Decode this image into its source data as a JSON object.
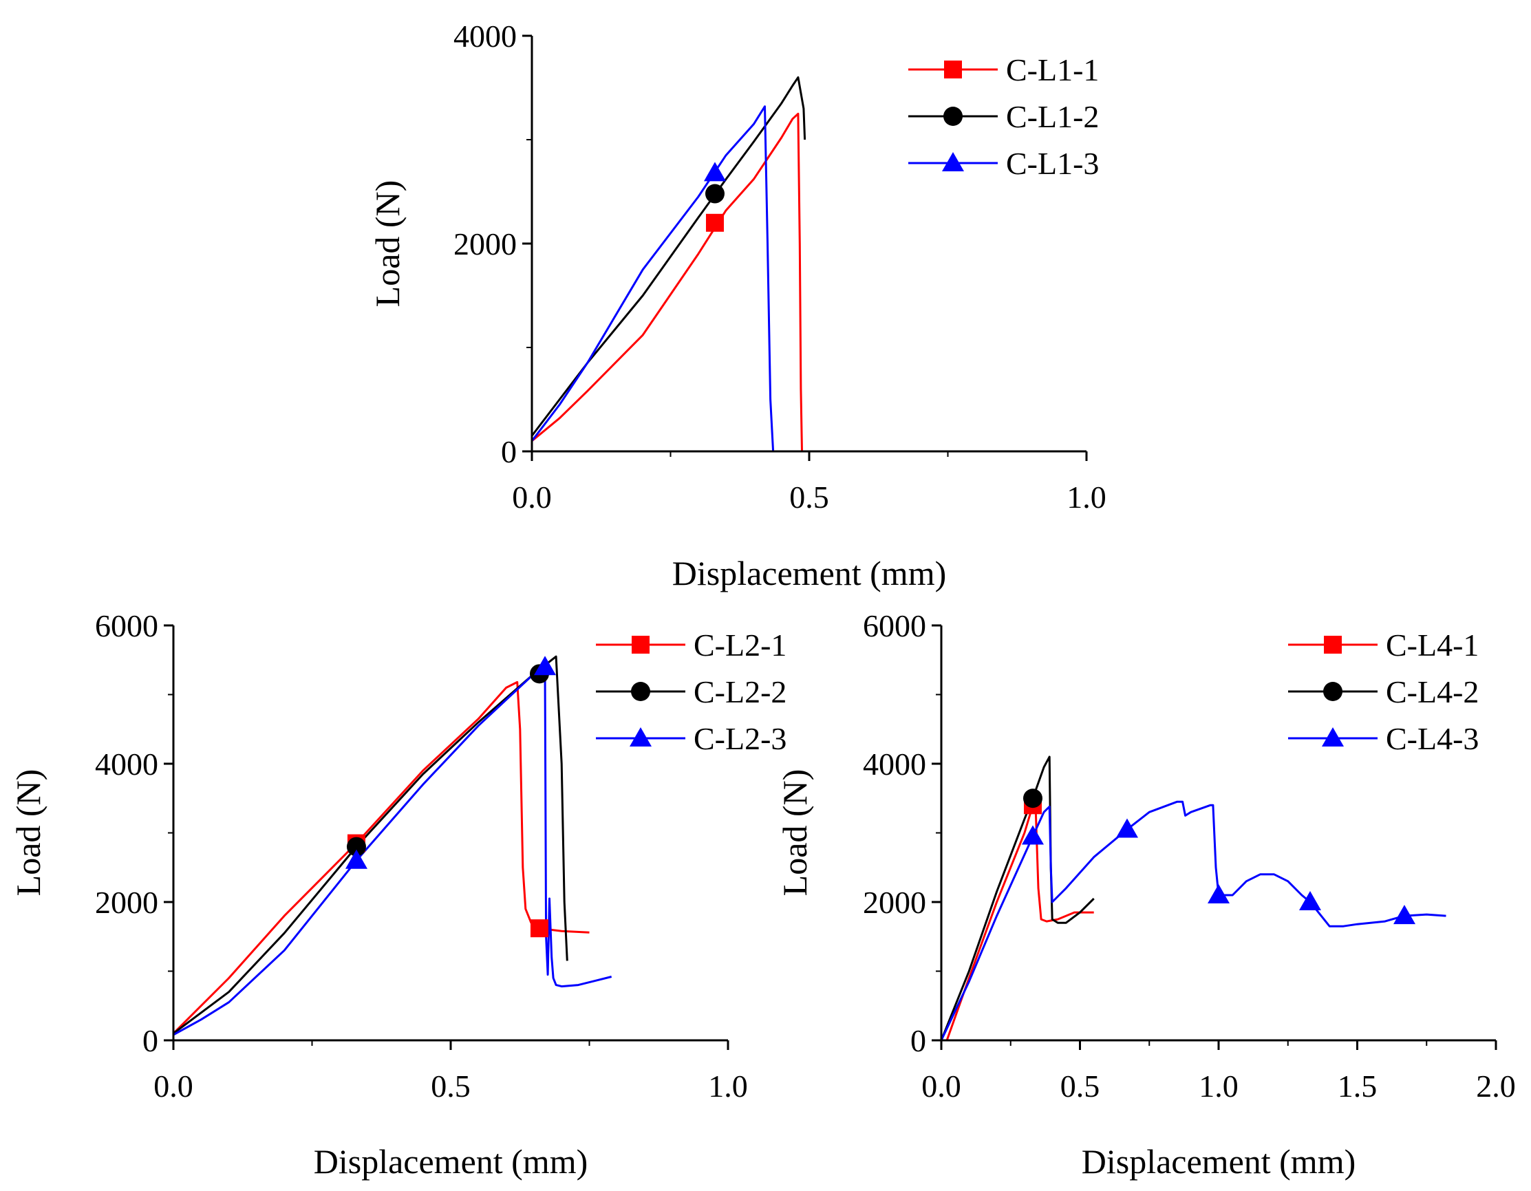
{
  "chart_data": [
    {
      "type": "line",
      "id": "c-l1",
      "xlabel": "Displacement (mm)",
      "ylabel": "Load (N)",
      "xlim": [
        0,
        1.0
      ],
      "ylim": [
        0,
        4000
      ],
      "xticks": [
        0,
        0.5,
        1.0
      ],
      "xtick_labels": [
        "0.0",
        "0.5",
        "1.0"
      ],
      "xminor": [
        0.25,
        0.75
      ],
      "yticks": [
        0,
        2000,
        4000
      ],
      "ytick_labels": [
        "0",
        "2000",
        "4000"
      ],
      "yminor": [
        1000,
        3000
      ],
      "legend_position": "top-right",
      "series": [
        {
          "name": "C-L1-1",
          "color": "#ff0000",
          "marker": "square",
          "x": [
            0.0,
            0.05,
            0.1,
            0.2,
            0.3,
            0.35,
            0.4,
            0.45,
            0.47,
            0.48,
            0.483,
            0.485,
            0.487
          ],
          "y": [
            100,
            320,
            580,
            1120,
            1900,
            2320,
            2620,
            3020,
            3200,
            3250,
            2000,
            600,
            0
          ],
          "marker_x": [
            0.33
          ],
          "marker_y": [
            2200
          ]
        },
        {
          "name": "C-L1-2",
          "color": "#000000",
          "marker": "circle",
          "x": [
            0.0,
            0.05,
            0.1,
            0.2,
            0.3,
            0.35,
            0.4,
            0.45,
            0.47,
            0.48,
            0.49,
            0.492
          ],
          "y": [
            150,
            500,
            850,
            1500,
            2250,
            2620,
            2980,
            3350,
            3520,
            3600,
            3300,
            3000
          ],
          "marker_x": [
            0.33
          ],
          "marker_y": [
            2480
          ]
        },
        {
          "name": "C-L1-3",
          "color": "#0000ff",
          "marker": "triangle",
          "x": [
            0.0,
            0.05,
            0.1,
            0.2,
            0.3,
            0.35,
            0.4,
            0.42,
            0.425,
            0.43,
            0.435
          ],
          "y": [
            100,
            450,
            850,
            1750,
            2450,
            2850,
            3150,
            3320,
            2000,
            500,
            0
          ],
          "marker_x": [
            0.33
          ],
          "marker_y": [
            2680
          ]
        }
      ]
    },
    {
      "type": "line",
      "id": "c-l2",
      "xlabel": "Displacement (mm)",
      "ylabel": "Load (N)",
      "xlim": [
        0,
        1.0
      ],
      "ylim": [
        0,
        6000
      ],
      "xticks": [
        0,
        0.5,
        1.0
      ],
      "xtick_labels": [
        "0.0",
        "0.5",
        "1.0"
      ],
      "xminor": [
        0.25,
        0.75
      ],
      "yticks": [
        0,
        2000,
        4000,
        6000
      ],
      "ytick_labels": [
        "0",
        "2000",
        "4000",
        "6000"
      ],
      "yminor": [
        1000,
        3000,
        5000
      ],
      "legend_position": "top-right",
      "series": [
        {
          "name": "C-L2-1",
          "color": "#ff0000",
          "marker": "square",
          "x": [
            0.0,
            0.1,
            0.2,
            0.33,
            0.45,
            0.55,
            0.6,
            0.62,
            0.625,
            0.63,
            0.635,
            0.645,
            0.66,
            0.7,
            0.75
          ],
          "y": [
            100,
            900,
            1800,
            2850,
            3900,
            4650,
            5100,
            5180,
            4500,
            2500,
            1900,
            1700,
            1620,
            1580,
            1560
          ],
          "marker_x": [
            0.33,
            0.66
          ],
          "marker_y": [
            2850,
            1620
          ]
        },
        {
          "name": "C-L2-2",
          "color": "#000000",
          "marker": "circle",
          "x": [
            0.0,
            0.1,
            0.2,
            0.33,
            0.45,
            0.55,
            0.65,
            0.69,
            0.7,
            0.705,
            0.71
          ],
          "y": [
            100,
            700,
            1550,
            2800,
            3850,
            4600,
            5300,
            5550,
            4000,
            2000,
            1150
          ],
          "marker_x": [
            0.33,
            0.66
          ],
          "marker_y": [
            2800,
            5300
          ]
        },
        {
          "name": "C-L2-3",
          "color": "#0000ff",
          "marker": "triangle",
          "x": [
            0.0,
            0.05,
            0.1,
            0.2,
            0.33,
            0.45,
            0.55,
            0.65,
            0.67,
            0.672,
            0.675,
            0.678,
            0.682,
            0.685,
            0.69,
            0.7,
            0.73,
            0.76,
            0.79
          ],
          "y": [
            80,
            300,
            550,
            1300,
            2600,
            3700,
            4550,
            5300,
            5400,
            1500,
            950,
            2050,
            1200,
            900,
            800,
            780,
            800,
            860,
            920
          ],
          "marker_x": [
            0.33,
            0.67
          ],
          "marker_y": [
            2600,
            5400
          ]
        }
      ]
    },
    {
      "type": "line",
      "id": "c-l4",
      "xlabel": "Displacement (mm)",
      "ylabel": "Load (N)",
      "xlim": [
        0,
        2.0
      ],
      "ylim": [
        0,
        6000
      ],
      "xticks": [
        0,
        0.5,
        1.0,
        1.5,
        2.0
      ],
      "xtick_labels": [
        "0.0",
        "0.5",
        "1.0",
        "1.5",
        "2.0"
      ],
      "xminor": [
        0.25,
        0.75,
        1.25,
        1.75
      ],
      "yticks": [
        0,
        2000,
        4000,
        6000
      ],
      "ytick_labels": [
        "0",
        "2000",
        "4000",
        "6000"
      ],
      "yminor": [
        1000,
        3000,
        5000
      ],
      "legend_position": "top-right",
      "series": [
        {
          "name": "C-L4-1",
          "color": "#ff0000",
          "marker": "square",
          "x": [
            0.02,
            0.1,
            0.2,
            0.3,
            0.33,
            0.34,
            0.35,
            0.36,
            0.38,
            0.42,
            0.48,
            0.55
          ],
          "y": [
            0,
            900,
            2000,
            3000,
            3400,
            3400,
            2200,
            1750,
            1720,
            1750,
            1850,
            1850
          ],
          "marker_x": [
            0.33
          ],
          "marker_y": [
            3400
          ]
        },
        {
          "name": "C-L4-2",
          "color": "#000000",
          "marker": "circle",
          "x": [
            0.0,
            0.1,
            0.2,
            0.3,
            0.33,
            0.37,
            0.39,
            0.395,
            0.4,
            0.42,
            0.45,
            0.5,
            0.55
          ],
          "y": [
            0,
            1000,
            2150,
            3200,
            3500,
            3950,
            4100,
            2500,
            1750,
            1700,
            1700,
            1850,
            2050
          ],
          "marker_x": [
            0.33
          ],
          "marker_y": [
            3500
          ]
        },
        {
          "name": "C-L4-3",
          "color": "#0000ff",
          "marker": "triangle",
          "x": [
            0.0,
            0.1,
            0.2,
            0.33,
            0.37,
            0.39,
            0.395,
            0.4,
            0.45,
            0.55,
            0.67,
            0.75,
            0.85,
            0.87,
            0.88,
            0.9,
            0.97,
            0.98,
            0.99,
            1.0,
            1.05,
            1.1,
            1.15,
            1.2,
            1.25,
            1.3,
            1.33,
            1.36,
            1.4,
            1.45,
            1.5,
            1.6,
            1.67,
            1.75,
            1.82
          ],
          "y": [
            0,
            850,
            1800,
            2950,
            3300,
            3380,
            2500,
            2000,
            2200,
            2650,
            3050,
            3300,
            3450,
            3450,
            3250,
            3300,
            3400,
            3400,
            2500,
            2100,
            2100,
            2300,
            2400,
            2400,
            2300,
            2100,
            2000,
            1850,
            1650,
            1650,
            1680,
            1720,
            1800,
            1820,
            1800
          ],
          "marker_x": [
            0.33,
            0.67,
            1.0,
            1.33,
            1.67
          ],
          "marker_y": [
            2950,
            3050,
            2100,
            2000,
            1800
          ]
        }
      ]
    }
  ]
}
